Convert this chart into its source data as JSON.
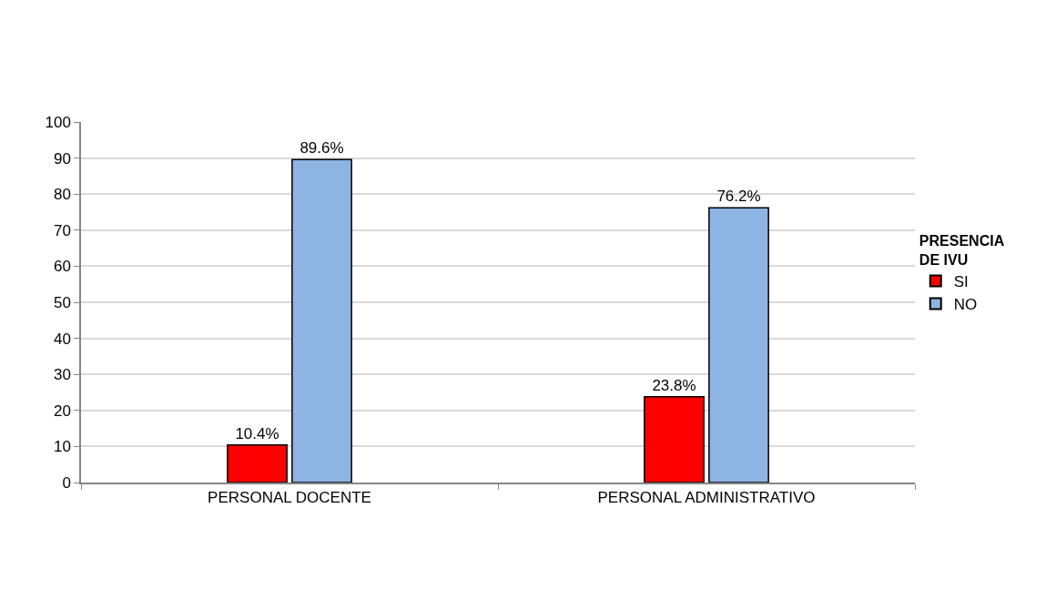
{
  "chart_data": {
    "type": "bar",
    "categories": [
      "PERSONAL DOCENTE",
      "PERSONAL ADMINISTRATIVO"
    ],
    "series": [
      {
        "name": "SI",
        "color": "#ff0000",
        "values": [
          10.4,
          23.8
        ],
        "value_labels": [
          "10.4%",
          "23.8%"
        ]
      },
      {
        "name": "NO",
        "color": "#8eb4e3",
        "values": [
          89.6,
          76.2
        ],
        "value_labels": [
          "89.6%",
          "76.2%"
        ]
      }
    ],
    "legend_title": "PRESENCIA DE IVU",
    "ylim": [
      0,
      100
    ],
    "yticks": [
      0,
      10,
      20,
      30,
      40,
      50,
      60,
      70,
      80,
      90,
      100
    ],
    "grid": "y",
    "legend": "right"
  }
}
